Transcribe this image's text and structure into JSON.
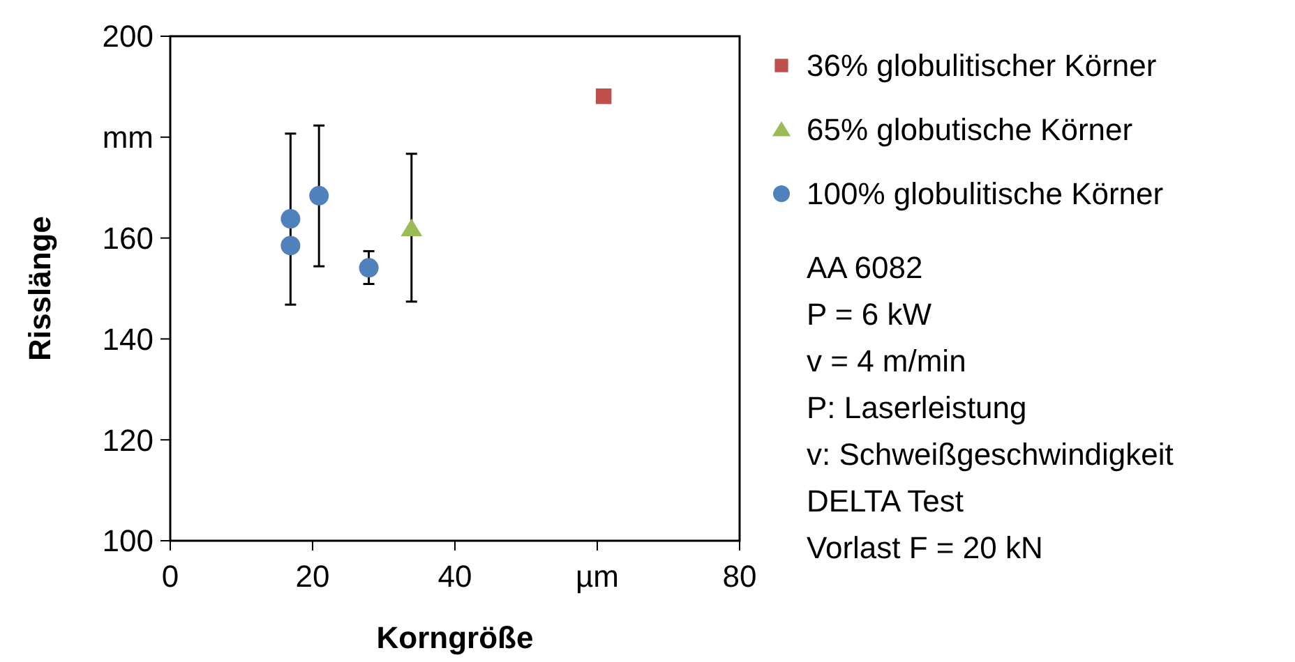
{
  "chart_data": {
    "type": "scatter",
    "xlabel": "Korngröße",
    "ylabel": "Risslänge",
    "xlim": [
      0,
      80
    ],
    "xticks": [
      0,
      20,
      40,
      {
        "value": 60,
        "label": "µm"
      },
      80
    ],
    "ylim": [
      100,
      200
    ],
    "yticks": [
      100,
      120,
      140,
      160,
      {
        "value": 180,
        "label": "mm"
      },
      200
    ],
    "grid": false,
    "legend": "right",
    "series": [
      {
        "name": "36% globulitischer Körner",
        "color": "#c0504d",
        "marker": "square",
        "x": [
          60.9
        ],
        "values": [
          188.1
        ]
      },
      {
        "name": "65% globutische Körner",
        "color": "#9bbb59",
        "marker": "triangle",
        "x": [
          33.9
        ],
        "values": [
          161.9
        ],
        "errors": [
          [
            147.4,
            176.7
          ]
        ]
      },
      {
        "name": "100% globulitische Körner",
        "color": "#4f81bd",
        "marker": "circle",
        "x": [
          16.9,
          16.9,
          20.9,
          27.9
        ],
        "values": [
          163.8,
          158.5,
          168.4,
          154.1
        ],
        "errors": [
          [
            146.8,
            180.7
          ],
          null,
          [
            154.4,
            182.3
          ],
          [
            150.9,
            157.4
          ]
        ]
      }
    ],
    "annotations": [
      "AA 6082",
      "P = 6 kW",
      "v = 4 m/min",
      "P: Laserleistung",
      "v: Schweißgeschwindigkeit",
      "DELTA Test",
      "Vorlast F = 20 kN"
    ]
  }
}
